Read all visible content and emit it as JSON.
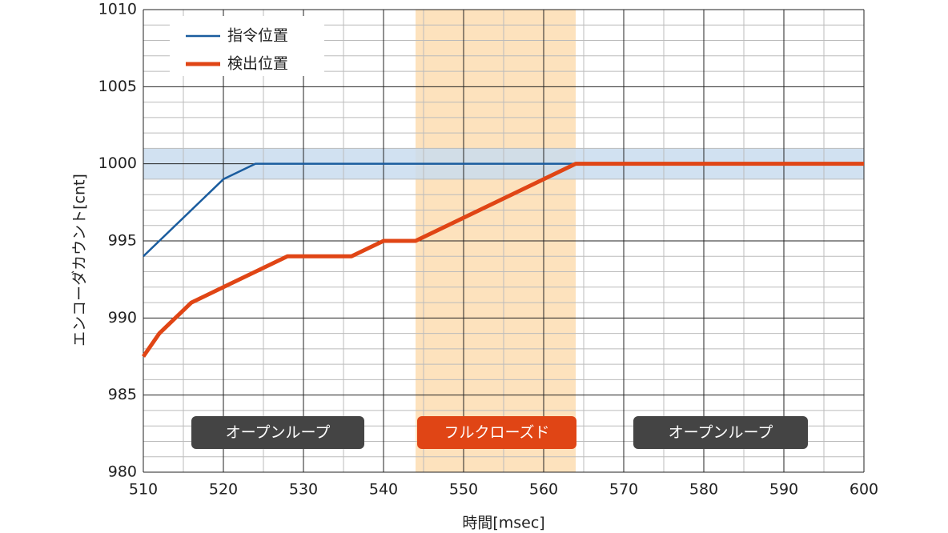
{
  "chart_data": {
    "type": "line",
    "x_label": "時間[msec]",
    "y_label": "エンコーダカウント[cnt]",
    "xlim": [
      510,
      600
    ],
    "xticks": [
      510,
      520,
      530,
      540,
      550,
      560,
      570,
      580,
      590,
      600
    ],
    "ylim": [
      980,
      1010
    ],
    "yticks": [
      980,
      985,
      990,
      995,
      1000,
      1005,
      1010
    ],
    "grid": true,
    "minor_grid": {
      "x": 2,
      "y": 5
    },
    "legend": "upper left",
    "bands": [
      {
        "axis": "x",
        "range": [
          544,
          564
        ],
        "color": "#fde2bd"
      },
      {
        "axis": "y",
        "range": [
          999,
          1001
        ],
        "color": "#c9dcee"
      }
    ],
    "regions": [
      {
        "label": "オープンループ",
        "range": [
          516,
          537.6
        ],
        "color": "#444444"
      },
      {
        "label": "フルクローズド",
        "range": [
          544.2,
          564.1
        ],
        "color": "#e04515"
      },
      {
        "label": "オープンループ",
        "range": [
          571.2,
          593
        ],
        "color": "#444444"
      }
    ],
    "series": [
      {
        "name": "指令位置",
        "color": "#1a5c9e",
        "width": 2.5,
        "x": [
          510,
          520,
          524,
          564
        ],
        "values": [
          994,
          999,
          1000,
          1000
        ]
      },
      {
        "name": "検出位置",
        "color": "#e04515",
        "width": 5,
        "x": [
          510,
          512,
          516,
          520,
          528,
          536,
          540,
          544,
          564,
          600
        ],
        "values": [
          987.5,
          989,
          991,
          992,
          994,
          994,
          995,
          995,
          1000,
          1000
        ]
      }
    ]
  }
}
